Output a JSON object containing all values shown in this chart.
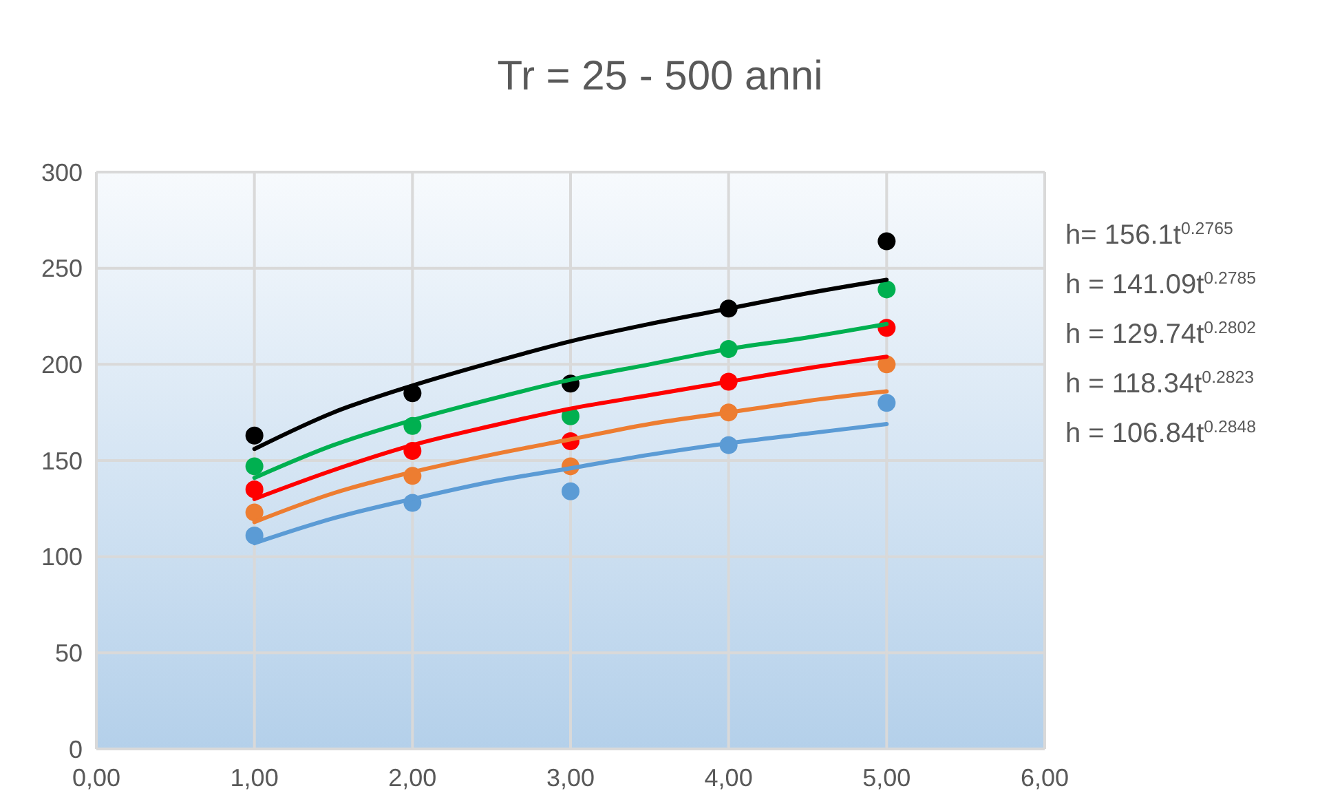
{
  "chart_data": {
    "type": "scatter",
    "title": "Tr = 25 - 500 anni",
    "x": [
      1,
      2,
      3,
      4,
      5
    ],
    "xlim": [
      0,
      6
    ],
    "xticks": [
      {
        "value": 0,
        "label": "0,00"
      },
      {
        "value": 1,
        "label": "1,00"
      },
      {
        "value": 2,
        "label": "2,00"
      },
      {
        "value": 3,
        "label": "3,00"
      },
      {
        "value": 4,
        "label": "4,00"
      },
      {
        "value": 5,
        "label": "5,00"
      },
      {
        "value": 6,
        "label": "6,00"
      }
    ],
    "ylim": [
      0,
      300
    ],
    "yticks": [
      0,
      50,
      100,
      150,
      200,
      250,
      300
    ],
    "grid": true,
    "series": [
      {
        "marker": "circle",
        "color": "#000000",
        "values": [
          163,
          185,
          190,
          229,
          264
        ]
      },
      {
        "marker": "circle",
        "color": "#00b050",
        "values": [
          147,
          168,
          173,
          208,
          239
        ]
      },
      {
        "marker": "circle",
        "color": "#ff0000",
        "values": [
          135,
          155,
          160,
          191,
          219
        ]
      },
      {
        "marker": "circle",
        "color": "#ed7d31",
        "values": [
          123,
          142,
          147,
          175,
          200
        ]
      },
      {
        "marker": "circle",
        "color": "#5b9bd5",
        "values": [
          111,
          128,
          134,
          158,
          180
        ]
      },
      {
        "type": "line",
        "color": "#000000",
        "x": [
          1,
          1.5,
          2,
          2.5,
          3,
          3.5,
          4,
          4.5,
          5
        ],
        "values": [
          156,
          175,
          189,
          201,
          212,
          221,
          229,
          237,
          244
        ]
      },
      {
        "type": "line",
        "color": "#00b050",
        "x": [
          1,
          1.5,
          2,
          2.5,
          3,
          3.5,
          4,
          4.5,
          5
        ],
        "values": [
          141,
          158,
          171,
          182,
          192,
          200,
          208,
          214,
          221
        ]
      },
      {
        "type": "line",
        "color": "#ff0000",
        "x": [
          1,
          1.5,
          2,
          2.5,
          3,
          3.5,
          4,
          4.5,
          5
        ],
        "values": [
          130,
          145,
          158,
          168,
          177,
          184,
          191,
          198,
          204
        ]
      },
      {
        "type": "line",
        "color": "#ed7d31",
        "x": [
          1,
          1.5,
          2,
          2.5,
          3,
          3.5,
          4,
          4.5,
          5
        ],
        "values": [
          118,
          133,
          144,
          153,
          161,
          169,
          175,
          181,
          186
        ]
      },
      {
        "type": "line",
        "color": "#5b9bd5",
        "x": [
          1,
          1.5,
          2,
          2.5,
          3,
          3.5,
          4,
          4.5,
          5
        ],
        "values": [
          107,
          120,
          130,
          139,
          146,
          153,
          159,
          164,
          169
        ]
      }
    ],
    "annotations": [
      "h= 156.1t$^{0.2765}$",
      "h = 141.09t$^{0.2785}$",
      "h = 129.74t$^{0.2802}$",
      "h = 118.34t$^{0.2823}$",
      "h = 106.84t$^{0.2848}$"
    ]
  }
}
